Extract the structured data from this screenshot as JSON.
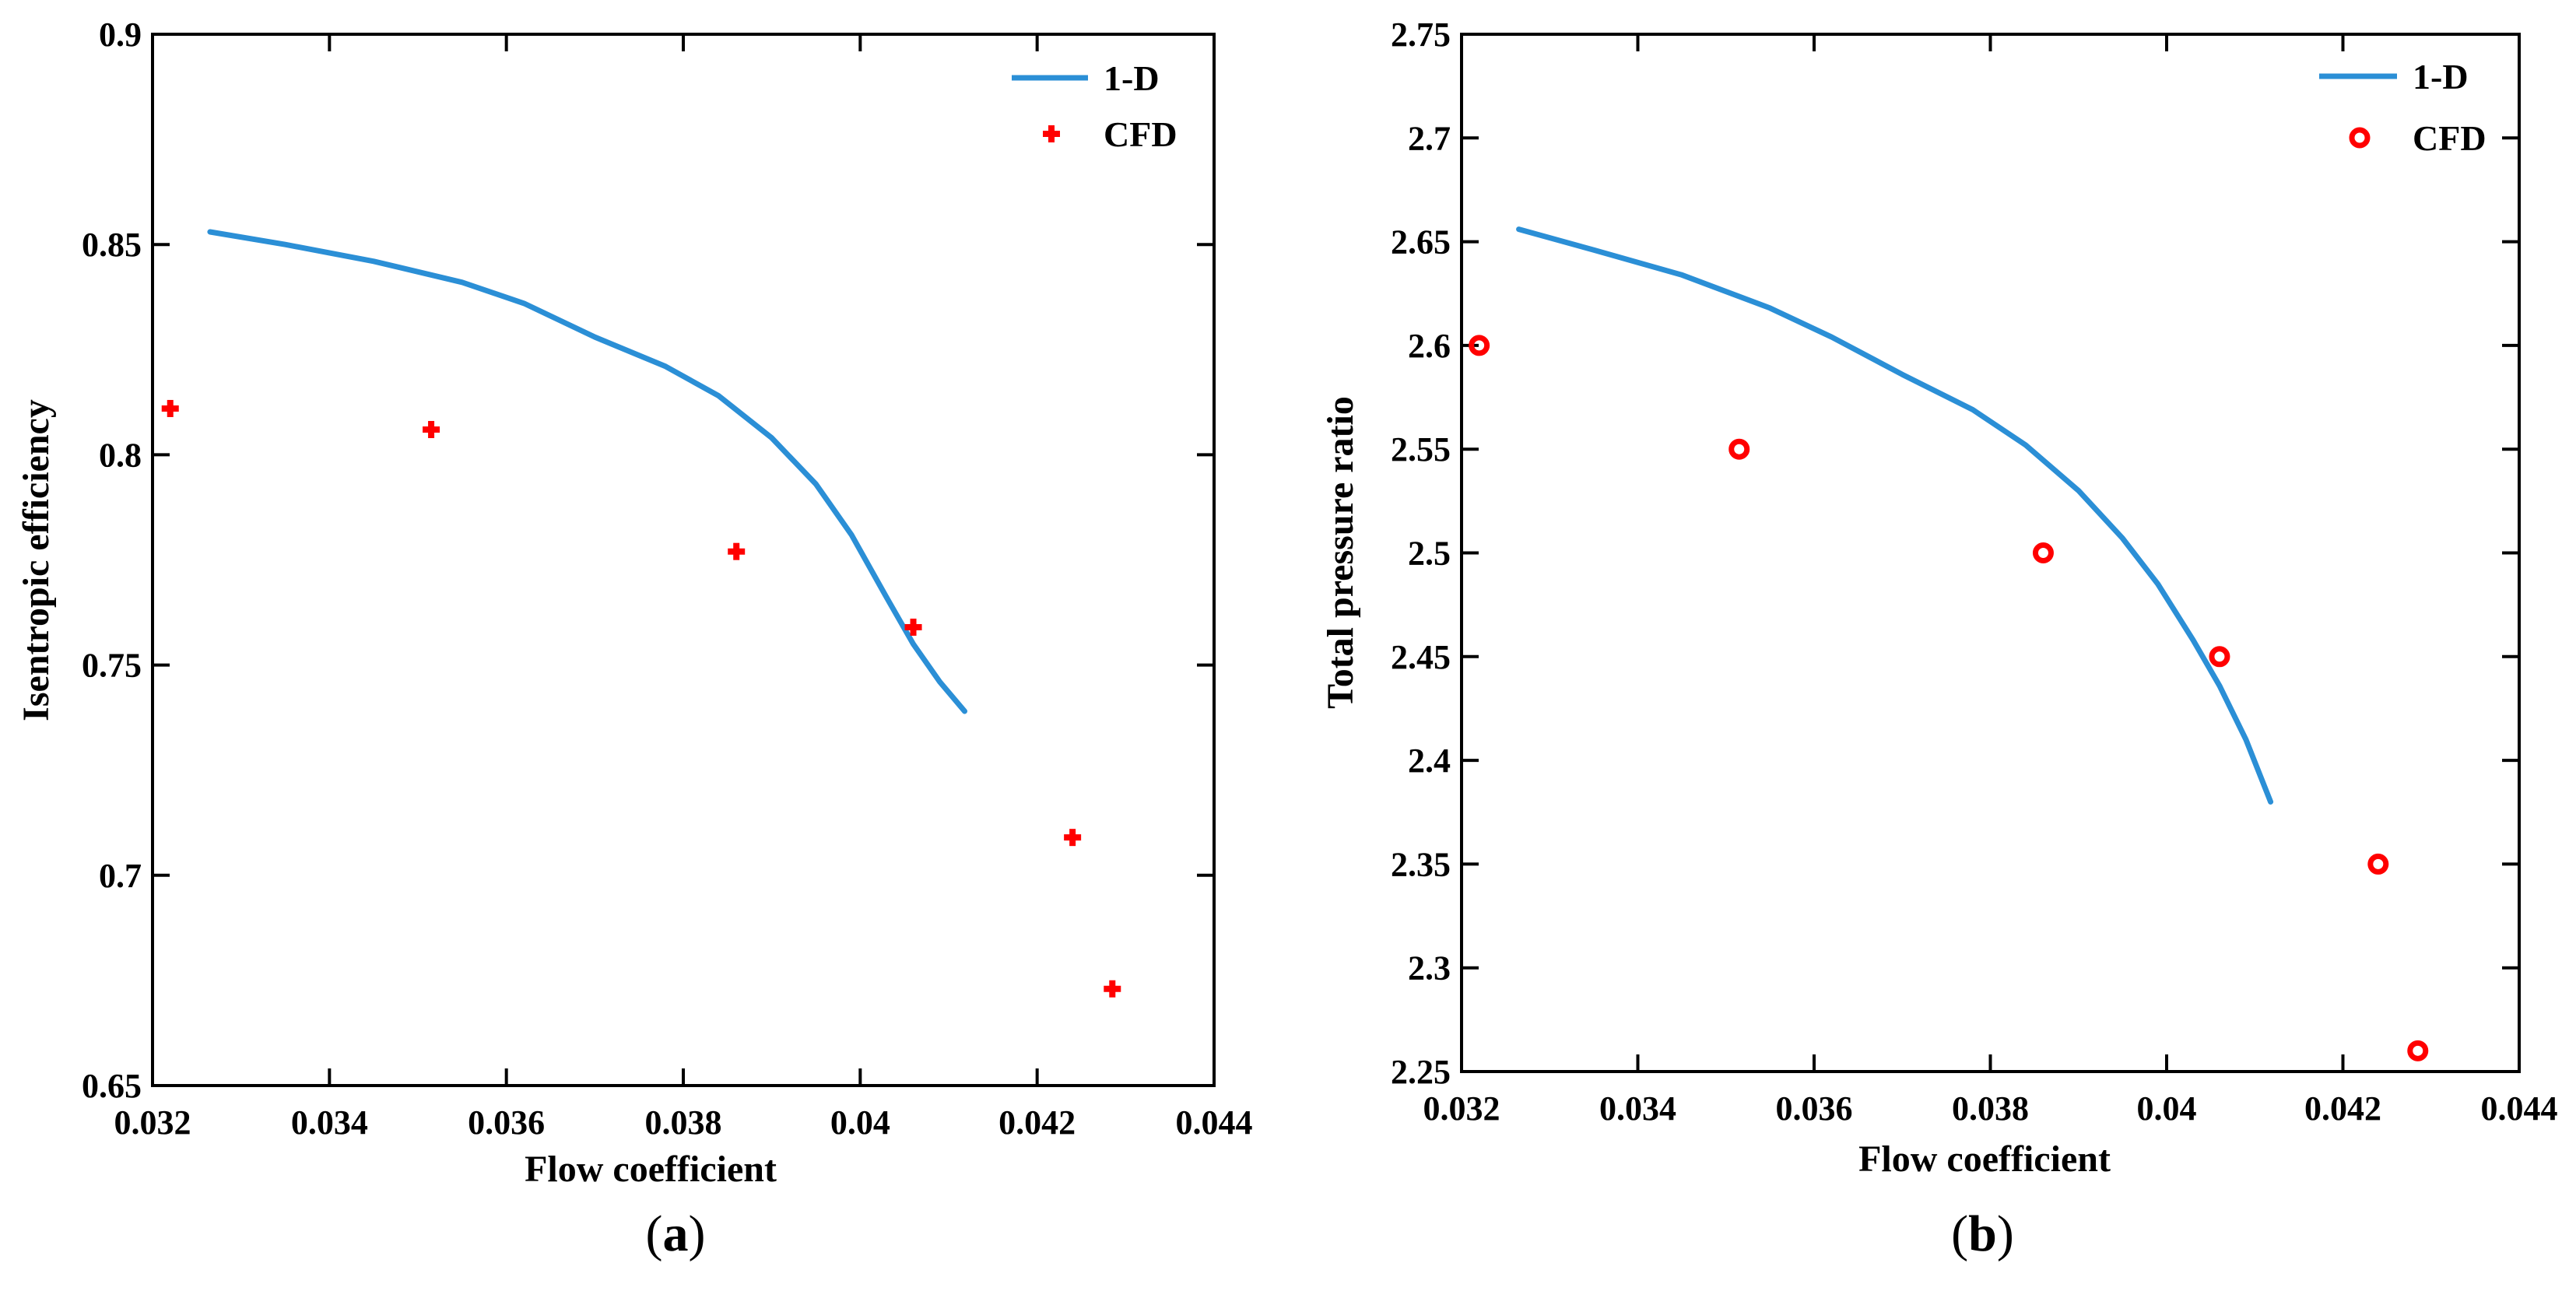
{
  "chart_data": [
    {
      "type": "line",
      "panel_label": "a",
      "title": "",
      "xlabel": "Flow coefficient",
      "ylabel": "Isentropic efficiency",
      "xlim": [
        0.032,
        0.044
      ],
      "ylim": [
        0.65,
        0.9
      ],
      "xticks": [
        "0.032",
        "0.034",
        "0.036",
        "0.038",
        "0.04",
        "0.042",
        "0.044"
      ],
      "yticks": [
        "0.65",
        "0.7",
        "0.75",
        "0.8",
        "0.85",
        "0.9"
      ],
      "legend_position": "top-right",
      "series": [
        {
          "name": "1-D",
          "kind": "line",
          "color": "#2b8fd6",
          "x": [
            0.03265,
            0.0335,
            0.0345,
            0.0355,
            0.0362,
            0.037,
            0.0378,
            0.0384,
            0.039,
            0.0395,
            0.0399,
            0.0403,
            0.0406,
            0.0409,
            0.04118
          ],
          "y": [
            0.853,
            0.85,
            0.846,
            0.841,
            0.836,
            0.828,
            0.821,
            0.814,
            0.804,
            0.793,
            0.781,
            0.766,
            0.755,
            0.746,
            0.739
          ]
        },
        {
          "name": "CFD",
          "kind": "scatter",
          "marker": "plus",
          "color": "#ff0000",
          "x": [
            0.0322,
            0.03515,
            0.0386,
            0.0406,
            0.0424,
            0.04285
          ],
          "y": [
            0.811,
            0.806,
            0.777,
            0.759,
            0.709,
            0.673
          ]
        }
      ]
    },
    {
      "type": "line",
      "panel_label": "b",
      "title": "",
      "xlabel": "Flow coefficient",
      "ylabel": "Total pressure ratio",
      "xlim": [
        0.032,
        0.044
      ],
      "ylim": [
        2.25,
        2.75
      ],
      "xticks": [
        "0.032",
        "0.034",
        "0.036",
        "0.038",
        "0.04",
        "0.042",
        "0.044"
      ],
      "yticks": [
        "2.25",
        "2.3",
        "2.35",
        "2.4",
        "2.45",
        "2.5",
        "2.55",
        "2.6",
        "2.65",
        "2.7",
        "2.75"
      ],
      "legend_position": "top-right",
      "series": [
        {
          "name": "1-D",
          "kind": "line",
          "color": "#2b8fd6",
          "x": [
            0.03265,
            0.0335,
            0.0345,
            0.0355,
            0.0362,
            0.037,
            0.0378,
            0.0384,
            0.039,
            0.0395,
            0.0399,
            0.0403,
            0.0406,
            0.0409,
            0.04118
          ],
          "y": [
            2.656,
            2.646,
            2.634,
            2.618,
            2.604,
            2.586,
            2.569,
            2.552,
            2.53,
            2.507,
            2.485,
            2.458,
            2.436,
            2.41,
            2.38
          ]
        },
        {
          "name": "CFD",
          "kind": "scatter",
          "marker": "circle",
          "color": "#ff0000",
          "x": [
            0.0322,
            0.03515,
            0.0386,
            0.0406,
            0.0424,
            0.04285
          ],
          "y": [
            2.6,
            2.55,
            2.5,
            2.45,
            2.35,
            2.26
          ]
        }
      ]
    }
  ]
}
